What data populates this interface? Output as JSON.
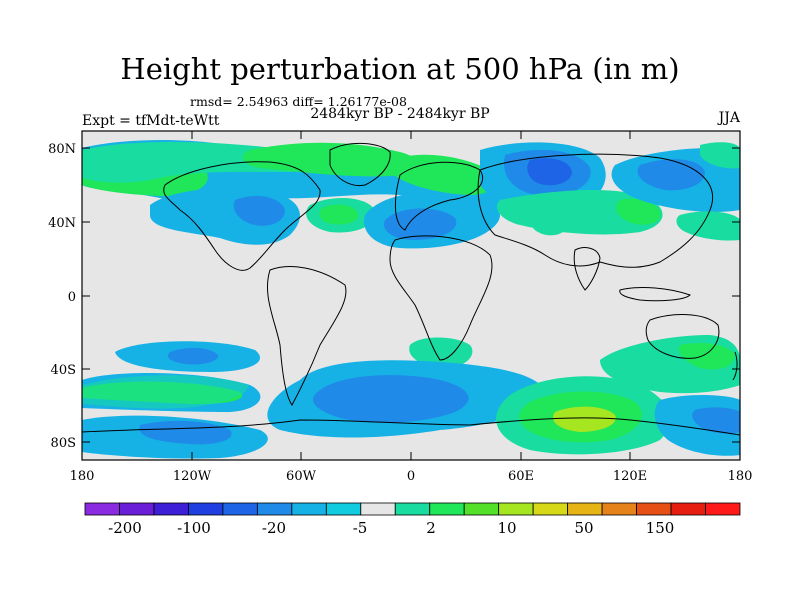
{
  "figure": {
    "title": "Height perturbation at 500 hPa (in m)",
    "stats": "rmsd= 2.54963 diff= 1.26177e-08",
    "period": "2484kyr BP - 2484kyr BP",
    "experiment": "Expt = tfMdt-teWtt",
    "season": "JJA"
  },
  "axes": {
    "lat_ticks": [
      "80N",
      "40N",
      "0",
      "40S",
      "80S"
    ],
    "lon_ticks": [
      "180",
      "120W",
      "60W",
      "0",
      "60E",
      "120E",
      "180"
    ]
  },
  "colorbar": {
    "labels": [
      "-200",
      "-100",
      "-20",
      "-5",
      "2",
      "10",
      "50",
      "150"
    ],
    "colors": [
      "#8a2be2",
      "#6a1ed8",
      "#3c1fd6",
      "#1f3fe0",
      "#1e64e6",
      "#1f8ae8",
      "#16b2e6",
      "#10ccde",
      "#e6e6e6",
      "#18dca0",
      "#20e65a",
      "#52e028",
      "#a6e620",
      "#d6d818",
      "#e6b414",
      "#e6821a",
      "#e65014",
      "#e61e10",
      "#ff1a1a"
    ]
  }
}
